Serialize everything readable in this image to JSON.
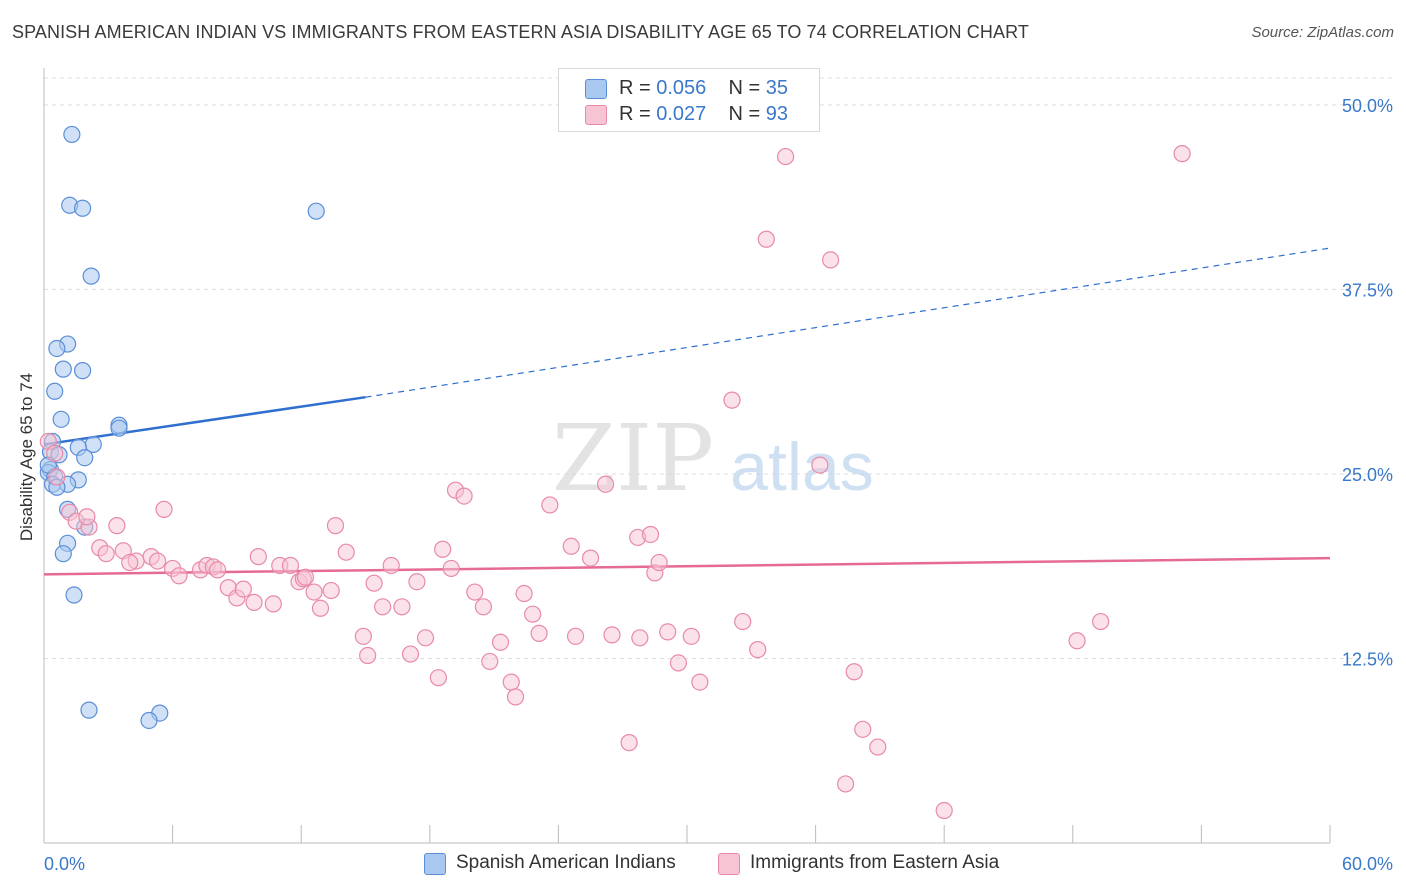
{
  "title": "SPANISH AMERICAN INDIAN VS IMMIGRANTS FROM EASTERN ASIA DISABILITY AGE 65 TO 74 CORRELATION CHART",
  "source": "Source: ZipAtlas.com",
  "watermark": {
    "zip": "ZIP",
    "atlas": "atlas"
  },
  "legend": {
    "r_label": "R =",
    "n_label": "N =",
    "series1": {
      "r": "0.056",
      "n": "35"
    },
    "series2": {
      "r": "0.027",
      "n": "93"
    }
  },
  "bottom_legend": {
    "series1": "Spanish American Indians",
    "series2": "Immigrants from Eastern Asia"
  },
  "colors": {
    "series1_fill": "#a9c8f0",
    "series1_stroke": "#5b8fd6",
    "series1_line": "#2f6fcf",
    "series2_fill": "#f7c4d3",
    "series2_stroke": "#e88aa8",
    "series2_line": "#e56a94",
    "axis_text": "#3a78c9",
    "grid": "#dddddd"
  },
  "chart_data": {
    "type": "scatter",
    "title": "SPANISH AMERICAN INDIAN VS IMMIGRANTS FROM EASTERN ASIA DISABILITY AGE 65 TO 74 CORRELATION CHART",
    "xlabel": "",
    "ylabel": "Disability Age 65 to 74",
    "xlim": [
      0,
      60
    ],
    "ylim": [
      0,
      52.5
    ],
    "x_tick_labels": [
      "0.0%",
      "60.0%"
    ],
    "y_ticks": [
      12.5,
      25.0,
      37.5,
      50.0
    ],
    "y_tick_labels": [
      "12.5%",
      "25.0%",
      "37.5%",
      "50.0%"
    ],
    "grid": true,
    "legend_position": "top-center",
    "series": [
      {
        "name": "Spanish American Indians",
        "R": 0.056,
        "N": 35,
        "trend": {
          "x": [
            0,
            15
          ],
          "y": [
            27.0,
            30.2
          ],
          "extended_to": [
            60,
            40.3
          ]
        },
        "points": [
          [
            1.3,
            48.0
          ],
          [
            1.2,
            43.2
          ],
          [
            1.8,
            43.0
          ],
          [
            12.7,
            42.8
          ],
          [
            2.2,
            38.4
          ],
          [
            1.1,
            33.8
          ],
          [
            0.6,
            33.5
          ],
          [
            0.9,
            32.1
          ],
          [
            1.8,
            32.0
          ],
          [
            0.5,
            30.6
          ],
          [
            0.8,
            28.7
          ],
          [
            3.5,
            28.3
          ],
          [
            3.5,
            28.1
          ],
          [
            0.4,
            27.2
          ],
          [
            2.3,
            27.0
          ],
          [
            1.6,
            26.8
          ],
          [
            0.3,
            26.5
          ],
          [
            0.7,
            26.3
          ],
          [
            1.9,
            26.1
          ],
          [
            0.3,
            25.3
          ],
          [
            0.2,
            25.1
          ],
          [
            0.5,
            24.8
          ],
          [
            1.6,
            24.6
          ],
          [
            0.4,
            24.3
          ],
          [
            1.1,
            24.3
          ],
          [
            1.1,
            22.6
          ],
          [
            1.9,
            21.4
          ],
          [
            1.1,
            20.3
          ],
          [
            0.9,
            19.6
          ],
          [
            1.4,
            16.8
          ],
          [
            2.1,
            9.0
          ],
          [
            5.4,
            8.8
          ],
          [
            4.9,
            8.3
          ],
          [
            0.2,
            25.6
          ],
          [
            0.6,
            24.1
          ]
        ]
      },
      {
        "name": "Immigrants from Eastern Asia",
        "R": 0.027,
        "N": 93,
        "trend": {
          "x": [
            0,
            60
          ],
          "y": [
            18.2,
            19.3
          ]
        },
        "points": [
          [
            34.2,
            49.5
          ],
          [
            34.6,
            46.5
          ],
          [
            53.1,
            46.7
          ],
          [
            33.7,
            40.9
          ],
          [
            36.7,
            39.5
          ],
          [
            32.1,
            30.0
          ],
          [
            36.2,
            25.6
          ],
          [
            26.2,
            24.3
          ],
          [
            19.2,
            23.9
          ],
          [
            19.6,
            23.5
          ],
          [
            23.6,
            22.9
          ],
          [
            0.2,
            27.2
          ],
          [
            0.5,
            26.4
          ],
          [
            0.6,
            24.8
          ],
          [
            1.2,
            22.4
          ],
          [
            1.5,
            21.8
          ],
          [
            2.1,
            21.4
          ],
          [
            3.4,
            21.5
          ],
          [
            5.6,
            22.6
          ],
          [
            13.6,
            21.5
          ],
          [
            27.7,
            20.7
          ],
          [
            28.3,
            20.9
          ],
          [
            24.6,
            20.1
          ],
          [
            2.6,
            20.0
          ],
          [
            3.7,
            19.8
          ],
          [
            2.9,
            19.6
          ],
          [
            4.3,
            19.1
          ],
          [
            5.0,
            19.4
          ],
          [
            5.3,
            19.1
          ],
          [
            6.0,
            18.6
          ],
          [
            6.3,
            18.1
          ],
          [
            7.3,
            18.5
          ],
          [
            7.6,
            18.8
          ],
          [
            7.9,
            18.7
          ],
          [
            8.6,
            17.3
          ],
          [
            9.0,
            16.6
          ],
          [
            9.3,
            17.2
          ],
          [
            9.8,
            16.3
          ],
          [
            10.0,
            19.4
          ],
          [
            10.7,
            16.2
          ],
          [
            11.0,
            18.8
          ],
          [
            11.5,
            18.8
          ],
          [
            11.9,
            17.7
          ],
          [
            12.1,
            17.9
          ],
          [
            12.6,
            17.0
          ],
          [
            12.9,
            15.9
          ],
          [
            13.4,
            17.1
          ],
          [
            14.1,
            19.7
          ],
          [
            14.9,
            14.0
          ],
          [
            15.1,
            12.7
          ],
          [
            15.4,
            17.6
          ],
          [
            15.8,
            16.0
          ],
          [
            16.2,
            18.8
          ],
          [
            16.7,
            16.0
          ],
          [
            17.1,
            12.8
          ],
          [
            17.4,
            17.7
          ],
          [
            17.8,
            13.9
          ],
          [
            18.4,
            11.2
          ],
          [
            18.6,
            19.9
          ],
          [
            19.0,
            18.6
          ],
          [
            20.1,
            17.0
          ],
          [
            20.5,
            16.0
          ],
          [
            20.8,
            12.3
          ],
          [
            21.3,
            13.6
          ],
          [
            21.8,
            10.9
          ],
          [
            22.0,
            9.9
          ],
          [
            22.4,
            16.9
          ],
          [
            22.8,
            15.5
          ],
          [
            23.1,
            14.2
          ],
          [
            24.8,
            14.0
          ],
          [
            25.5,
            19.3
          ],
          [
            26.5,
            14.1
          ],
          [
            27.3,
            6.8
          ],
          [
            27.8,
            13.9
          ],
          [
            28.5,
            18.3
          ],
          [
            29.1,
            14.3
          ],
          [
            29.6,
            12.2
          ],
          [
            30.2,
            14.0
          ],
          [
            30.6,
            10.9
          ],
          [
            28.7,
            19.0
          ],
          [
            32.6,
            15.0
          ],
          [
            33.3,
            13.1
          ],
          [
            37.8,
            11.6
          ],
          [
            38.2,
            7.7
          ],
          [
            37.4,
            4.0
          ],
          [
            38.9,
            6.5
          ],
          [
            42.0,
            2.2
          ],
          [
            48.2,
            13.7
          ],
          [
            49.3,
            15.0
          ],
          [
            2.0,
            22.1
          ],
          [
            4.0,
            19.0
          ],
          [
            8.1,
            18.5
          ],
          [
            12.2,
            18.0
          ]
        ]
      }
    ]
  }
}
